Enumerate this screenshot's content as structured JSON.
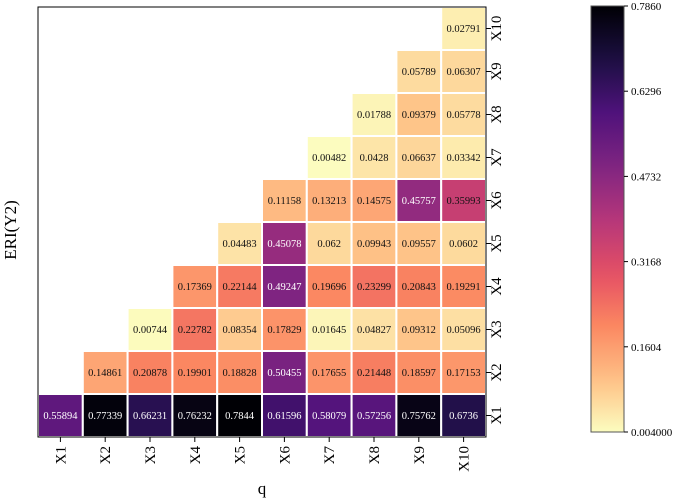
{
  "chart_data": {
    "type": "heatmap",
    "title": "",
    "xlabel": "q",
    "ylabel": "ERI(Y2)",
    "x_labels": [
      "X1",
      "X2",
      "X3",
      "X4",
      "X5",
      "X6",
      "X7",
      "X8",
      "X9",
      "X10"
    ],
    "y_labels": [
      "X1",
      "X2",
      "X3",
      "X4",
      "X5",
      "X6",
      "X7",
      "X8",
      "X9",
      "X10"
    ],
    "colormap": "magma",
    "colorbar": {
      "min": 0.004,
      "max": 0.786,
      "ticks": [
        0.786,
        0.6296,
        0.4732,
        0.3168,
        0.1604,
        0.004
      ],
      "tick_labels": [
        "0.7860",
        "0.6296",
        "0.4732",
        "0.3168",
        "0.1604",
        "0.004000"
      ]
    },
    "rows": [
      {
        "y": "X1",
        "values": [
          0.55894,
          0.77339,
          0.66231,
          0.76232,
          0.7844,
          0.61596,
          0.58079,
          0.57256,
          0.75762,
          0.6736
        ],
        "labels": [
          "0.55894",
          "0.77339",
          "0.66231",
          "0.76232",
          "0.7844",
          "0.61596",
          "0.58079",
          "0.57256",
          "0.75762",
          "0.6736"
        ]
      },
      {
        "y": "X2",
        "values": [
          null,
          0.14861,
          0.20878,
          0.19901,
          0.18828,
          0.50455,
          0.17655,
          0.21448,
          0.18597,
          0.17153
        ],
        "labels": [
          null,
          "0.14861",
          "0.20878",
          "0.19901",
          "0.18828",
          "0.50455",
          "0.17655",
          "0.21448",
          "0.18597",
          "0.17153"
        ]
      },
      {
        "y": "X3",
        "values": [
          null,
          null,
          0.00744,
          0.22782,
          0.08354,
          0.17829,
          0.01645,
          0.04827,
          0.09312,
          0.05096
        ],
        "labels": [
          null,
          null,
          "0.00744",
          "0.22782",
          "0.08354",
          "0.17829",
          "0.01645",
          "0.04827",
          "0.09312",
          "0.05096"
        ]
      },
      {
        "y": "X4",
        "values": [
          null,
          null,
          null,
          0.17369,
          0.22144,
          0.49247,
          0.19696,
          0.23299,
          0.20843,
          0.19291
        ],
        "labels": [
          null,
          null,
          null,
          "0.17369",
          "0.22144",
          "0.49247",
          "0.19696",
          "0.23299",
          "0.20843",
          "0.19291"
        ]
      },
      {
        "y": "X5",
        "values": [
          null,
          null,
          null,
          null,
          0.04483,
          0.45078,
          0.062,
          0.09943,
          0.09557,
          0.0602
        ],
        "labels": [
          null,
          null,
          null,
          null,
          "0.04483",
          "0.45078",
          "0.062",
          "0.09943",
          "0.09557",
          "0.0602"
        ]
      },
      {
        "y": "X6",
        "values": [
          null,
          null,
          null,
          null,
          null,
          0.11158,
          0.13213,
          0.14575,
          0.45757,
          0.35993
        ],
        "labels": [
          null,
          null,
          null,
          null,
          null,
          "0.11158",
          "0.13213",
          "0.14575",
          "0.45757",
          "0.35993"
        ]
      },
      {
        "y": "X7",
        "values": [
          null,
          null,
          null,
          null,
          null,
          null,
          0.00482,
          0.0428,
          0.06637,
          0.03342
        ],
        "labels": [
          null,
          null,
          null,
          null,
          null,
          null,
          "0.00482",
          "0.0428",
          "0.06637",
          "0.03342"
        ]
      },
      {
        "y": "X8",
        "values": [
          null,
          null,
          null,
          null,
          null,
          null,
          null,
          0.01788,
          0.09379,
          0.05778
        ],
        "labels": [
          null,
          null,
          null,
          null,
          null,
          null,
          null,
          "0.01788",
          "0.09379",
          "0.05778"
        ]
      },
      {
        "y": "X9",
        "values": [
          null,
          null,
          null,
          null,
          null,
          null,
          null,
          null,
          0.05789,
          0.06307
        ],
        "labels": [
          null,
          null,
          null,
          null,
          null,
          null,
          null,
          null,
          "0.05789",
          "0.06307"
        ]
      },
      {
        "y": "X10",
        "values": [
          null,
          null,
          null,
          null,
          null,
          null,
          null,
          null,
          null,
          0.02791
        ],
        "labels": [
          null,
          null,
          null,
          null,
          null,
          null,
          null,
          null,
          null,
          "0.02791"
        ]
      }
    ]
  }
}
